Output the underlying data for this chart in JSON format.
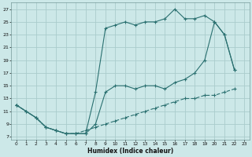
{
  "xlabel": "Humidex (Indice chaleur)",
  "background_color": "#cce8e8",
  "grid_color": "#aacccc",
  "line_color": "#2a7070",
  "xlim": [
    -0.5,
    23.5
  ],
  "ylim": [
    6.5,
    28
  ],
  "xticks": [
    0,
    1,
    2,
    3,
    4,
    5,
    6,
    7,
    8,
    9,
    10,
    11,
    12,
    13,
    14,
    15,
    16,
    17,
    18,
    19,
    20,
    21,
    22,
    23
  ],
  "yticks": [
    7,
    9,
    11,
    13,
    15,
    17,
    19,
    21,
    23,
    25,
    27
  ],
  "line1_x": [
    0,
    1,
    2,
    3,
    4,
    5,
    6,
    7,
    8,
    9,
    10,
    11,
    12,
    13,
    14,
    15,
    16,
    17,
    18,
    19,
    20,
    21,
    22
  ],
  "line1_y": [
    12,
    11,
    10,
    8.5,
    8,
    7.5,
    7.5,
    7.5,
    9,
    14,
    15,
    15,
    14.5,
    15,
    15,
    14.5,
    15.5,
    16,
    17,
    19,
    25,
    23,
    17.5
  ],
  "line2_x": [
    0,
    1,
    2,
    3,
    4,
    5,
    6,
    7,
    8,
    9,
    10,
    11,
    12,
    13,
    14,
    15,
    16,
    17,
    18,
    19,
    20,
    21,
    22
  ],
  "line2_y": [
    12,
    11,
    10,
    8.5,
    8,
    7.5,
    7.5,
    7.5,
    14,
    24,
    24.5,
    25,
    24.5,
    25,
    25,
    25.5,
    27,
    25.5,
    25.5,
    26,
    25,
    23,
    17.5
  ],
  "line3_x": [
    0,
    2,
    3,
    4,
    5,
    6,
    7,
    8,
    9,
    10,
    11,
    12,
    13,
    14,
    15,
    16,
    17,
    18,
    19,
    20,
    21,
    22
  ],
  "line3_y": [
    12,
    10,
    8.5,
    8,
    7.5,
    7.5,
    8,
    8.5,
    9,
    9.5,
    10,
    10.5,
    11,
    11.5,
    12,
    12.5,
    13,
    13,
    13.5,
    13.5,
    14,
    14.5
  ]
}
